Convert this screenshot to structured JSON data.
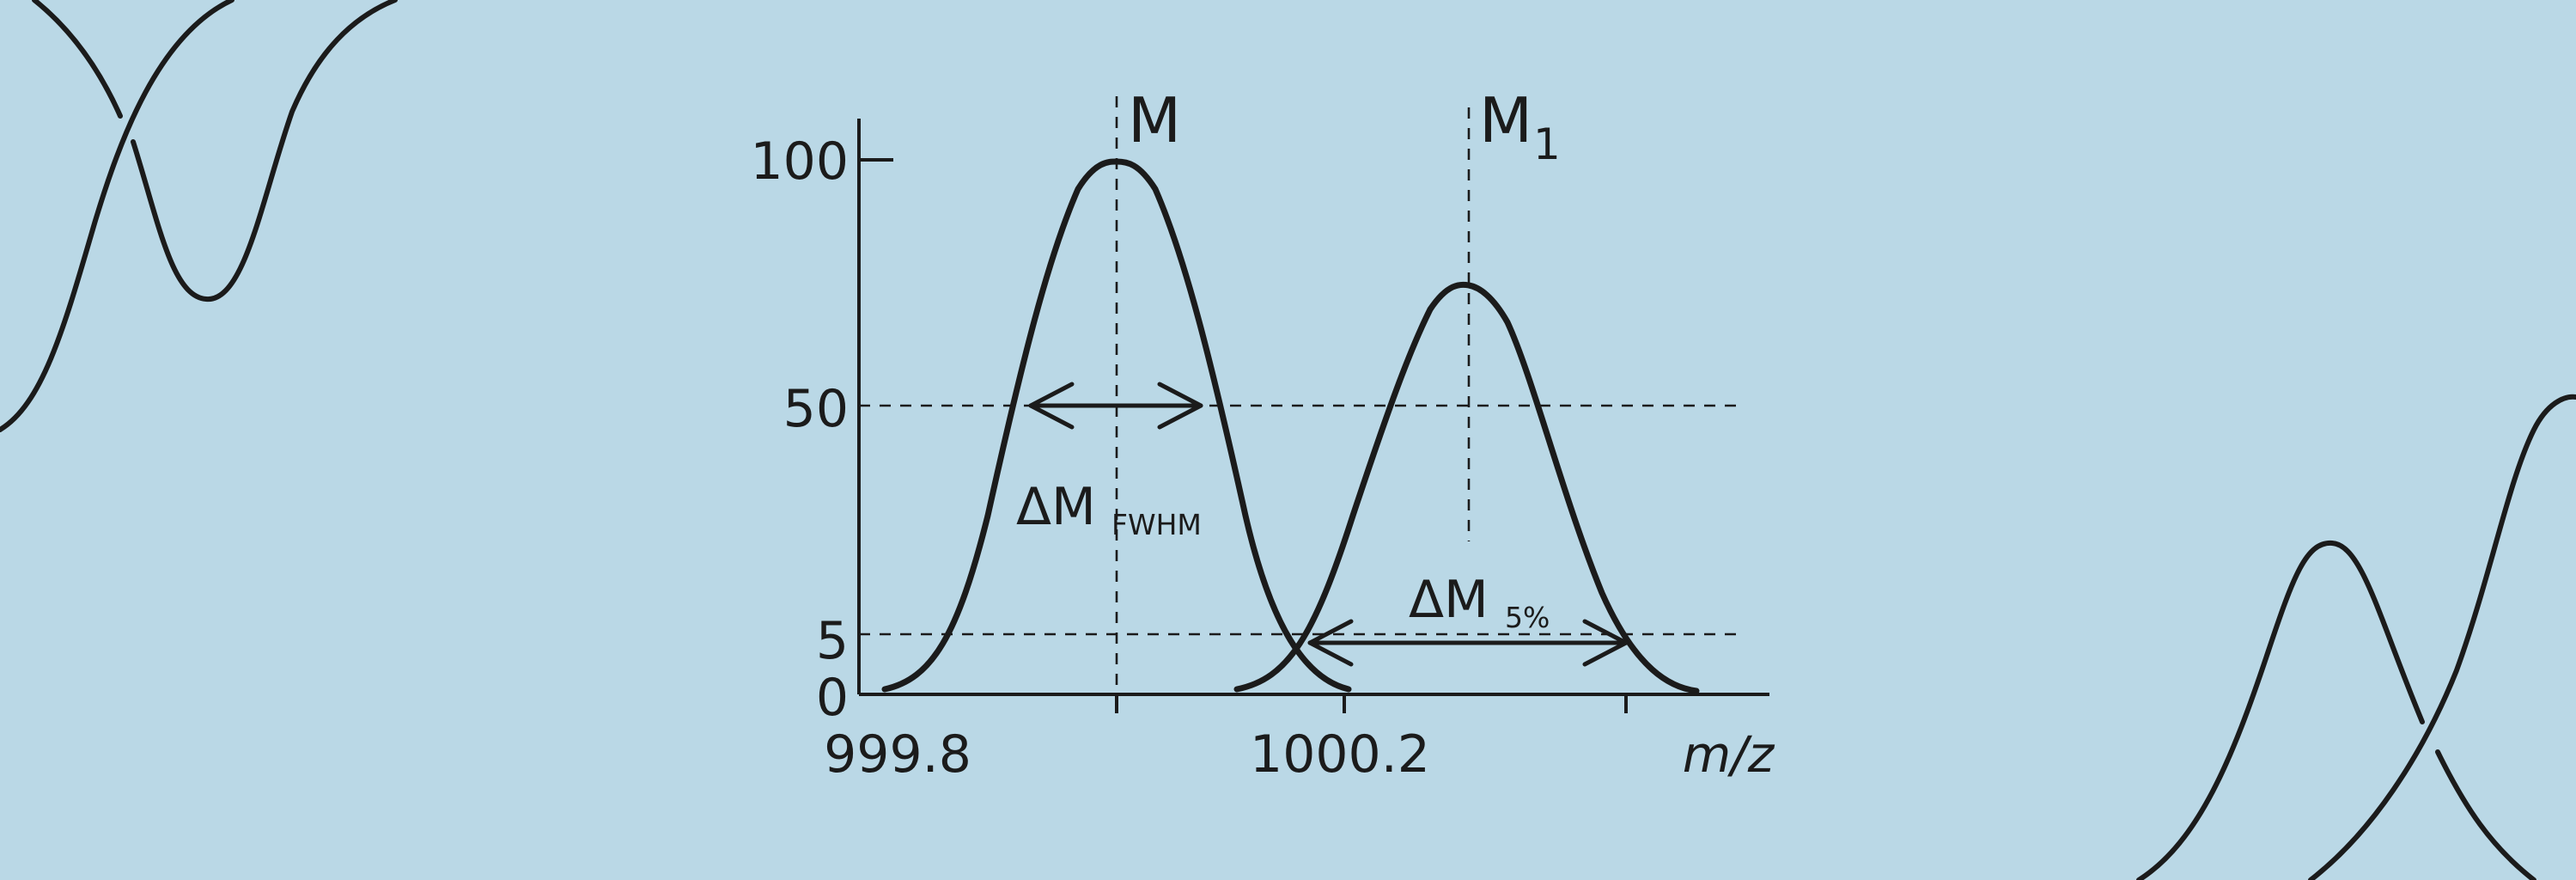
{
  "diagram": {
    "y_ticks": [
      "100",
      "50",
      "5",
      "0"
    ],
    "x_ticks": [
      "999.8",
      "1000.2"
    ],
    "x_unit": "m/z",
    "peak_labels": {
      "main": "M",
      "second": "M",
      "second_subscript": "1"
    },
    "fwhm_label": {
      "main": "ΔM",
      "subscript": "FWHM"
    },
    "width5_label": {
      "main": "ΔM",
      "subscript": "5%"
    }
  }
}
